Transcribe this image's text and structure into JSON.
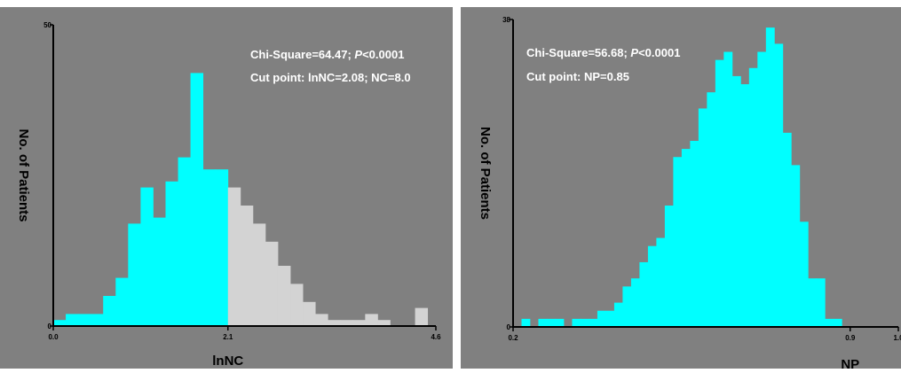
{
  "charts": [
    {
      "type": "bar",
      "name": "lnnc-histogram",
      "title": "",
      "xlabel": "lnNC",
      "ylabel": "No. of Patients",
      "xlim": [
        0.0,
        4.6
      ],
      "ylim": [
        0,
        50
      ],
      "x_ticks": [
        "0.0",
        "2.1",
        "4.6"
      ],
      "y_ticks": [
        "0",
        "50"
      ],
      "cut_point": 2.1,
      "bin_edges": [
        0.0,
        0.15,
        0.3,
        0.45,
        0.6,
        0.75,
        0.9,
        1.05,
        1.2,
        1.35,
        1.5,
        1.65,
        1.8,
        1.95,
        2.1,
        2.25,
        2.4,
        2.55,
        2.7,
        2.85,
        3.0,
        3.15,
        3.3,
        3.45,
        3.6,
        3.75,
        3.9,
        4.05,
        4.2,
        4.35,
        4.5,
        4.6
      ],
      "values": [
        1,
        2,
        2,
        2,
        5,
        8,
        17,
        23,
        18,
        24,
        28,
        42,
        26,
        26,
        23,
        20,
        17,
        14,
        10,
        7,
        4,
        2,
        1,
        1,
        1,
        2,
        1,
        0,
        0,
        3,
        0
      ],
      "colors": {
        "below_cut": "#00ffff",
        "above_cut": "#d3d3d3",
        "background": "#808080"
      },
      "annotations": [
        {
          "parts": [
            "Chi-Square=64.47; ",
            "P",
            "<0.0001"
          ]
        },
        {
          "parts": [
            "Cut point: lnNC=2.08; NC=8.0"
          ]
        }
      ]
    },
    {
      "type": "bar",
      "name": "np-histogram",
      "title": "",
      "xlabel": "NP",
      "ylabel": "No. of Patients",
      "xlim": [
        0.2,
        1.0
      ],
      "ylim": [
        0,
        38
      ],
      "x_ticks": [
        "0.2",
        "0.9",
        "1.0"
      ],
      "y_ticks": [
        "0",
        "38"
      ],
      "cut_point": 0.9,
      "bin_edges": [
        0.2,
        0.2175,
        0.235,
        0.2525,
        0.27,
        0.2875,
        0.305,
        0.3225,
        0.34,
        0.3575,
        0.375,
        0.3925,
        0.41,
        0.4275,
        0.445,
        0.4625,
        0.48,
        0.4975,
        0.515,
        0.5325,
        0.55,
        0.5675,
        0.585,
        0.6025,
        0.62,
        0.6375,
        0.655,
        0.6725,
        0.69,
        0.7075,
        0.725,
        0.7425,
        0.76,
        0.7775,
        0.795,
        0.8125,
        0.83,
        0.8475,
        0.865,
        0.8825,
        0.9,
        0.9175,
        0.935,
        0.9525,
        0.97,
        0.9875,
        1.0
      ],
      "values": [
        0,
        1,
        0,
        1,
        1,
        1,
        0,
        1,
        1,
        1,
        2,
        2,
        3,
        5,
        6,
        8,
        10,
        11,
        15,
        21,
        22,
        23,
        27,
        29,
        33,
        34,
        31,
        30,
        32,
        34,
        37,
        35,
        24,
        20,
        13,
        6,
        6,
        1,
        1,
        0,
        0,
        0,
        0,
        0,
        0,
        0
      ],
      "colors": {
        "below_cut": "#00ffff",
        "above_cut": "#d3d3d3",
        "background": "#808080"
      },
      "annotations": [
        {
          "parts": [
            "Chi-Square=56.68; ",
            "P",
            "<0.0001"
          ]
        },
        {
          "parts": [
            "Cut point: NP=0.85"
          ]
        }
      ]
    }
  ]
}
